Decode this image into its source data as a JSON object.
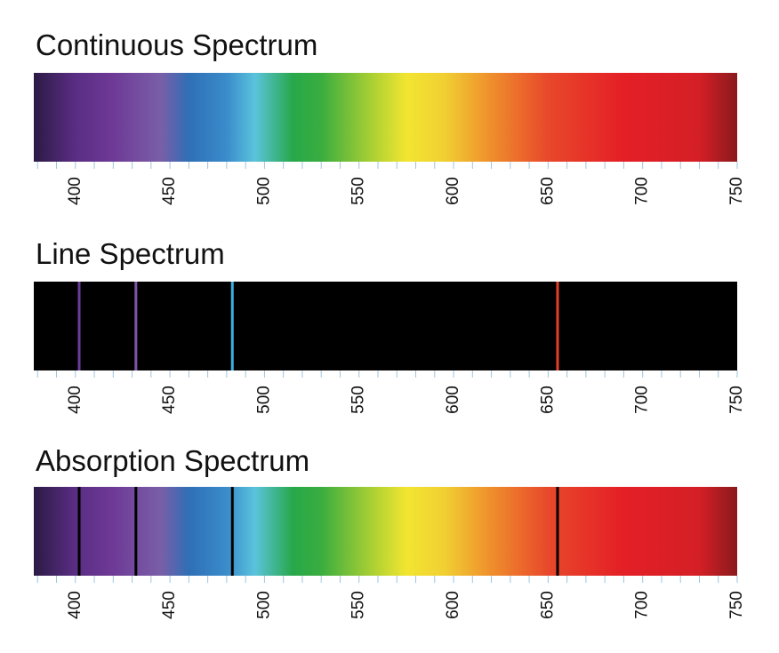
{
  "chart_data": [
    {
      "type": "continuous",
      "title": "Continuous Spectrum",
      "xlim": [
        378,
        750
      ],
      "xticks": [
        400,
        450,
        500,
        550,
        600,
        650,
        700,
        750
      ],
      "minor_xticks": [
        380,
        390,
        410,
        420,
        430,
        440,
        460,
        470,
        480,
        490,
        510,
        520,
        530,
        540,
        560,
        570,
        580,
        590,
        610,
        620,
        630,
        640,
        660,
        670,
        680,
        690,
        710,
        720,
        730,
        740
      ]
    },
    {
      "type": "emission",
      "title": "Line Spectrum",
      "xlim": [
        378,
        750
      ],
      "xticks": [
        400,
        450,
        500,
        550,
        600,
        650,
        700,
        750
      ],
      "minor_xticks": [
        380,
        390,
        410,
        420,
        430,
        440,
        460,
        470,
        480,
        490,
        510,
        520,
        530,
        540,
        560,
        570,
        580,
        590,
        610,
        620,
        630,
        640,
        660,
        670,
        680,
        690,
        710,
        720,
        730,
        740
      ],
      "lines": [
        402,
        432,
        483,
        655
      ],
      "line_colors": [
        "#6a3d9a",
        "#7b55a8",
        "#3ab0dc",
        "#e0402a"
      ]
    },
    {
      "type": "absorption",
      "title": "Absorption Spectrum",
      "xlim": [
        378,
        750
      ],
      "xticks": [
        400,
        450,
        500,
        550,
        600,
        650,
        700,
        750
      ],
      "minor_xticks": [
        380,
        390,
        410,
        420,
        430,
        440,
        460,
        470,
        480,
        490,
        510,
        520,
        530,
        540,
        560,
        570,
        580,
        590,
        610,
        620,
        630,
        640,
        660,
        670,
        680,
        690,
        710,
        720,
        730,
        740
      ],
      "lines": [
        402,
        432,
        483,
        655
      ],
      "line_color": "#000000"
    }
  ]
}
